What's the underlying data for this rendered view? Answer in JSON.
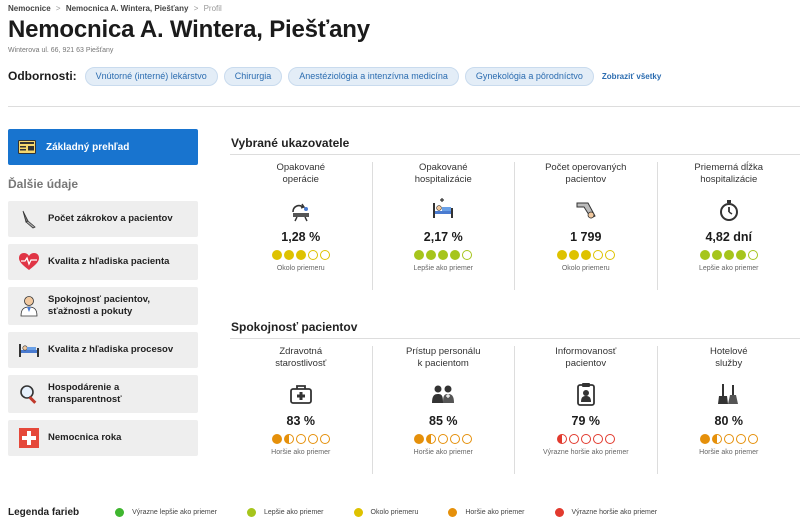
{
  "breadcrumb": {
    "items": [
      "Nemocnice",
      "Nemocnica A. Wintera, Piešťany",
      "Profil"
    ]
  },
  "header": {
    "title": "Nemocnica A. Wintera, Piešťany",
    "address": "Winterova ul. 66, 921 63 Piešťany"
  },
  "specialties": {
    "label": "Odbornosti:",
    "items": [
      "Vnútorné (interné) lekárstvo",
      "Chirurgia",
      "Anestéziológia a intenzívna medicína",
      "Gynekológia a pôrodníctvo"
    ],
    "show_all": "Zobraziť všetky"
  },
  "sidebar": {
    "active": "Základný prehľad",
    "section_title": "Ďalšie údaje",
    "items": [
      "Počet zákrokov a pacientov",
      "Kvalita z hľadiska pacienta",
      "Spokojnosť pacientov,\nsťažnosti a pokuty",
      "Kvalita z hľadiska procesov",
      "Hospodárenie a\ntransparentnosť",
      "Nemocnica roka"
    ]
  },
  "colors": {
    "green": "#3fb62f",
    "lightgreen": "#a6c51c",
    "yellow": "#dec200",
    "orange": "#e5900b",
    "red": "#e23a2e",
    "accent": "#1874cf"
  },
  "indicators": {
    "title": "Vybrané ukazovatele",
    "items": [
      {
        "title": "Opakované\noperácie",
        "icon": "surgery-repeat-icon",
        "value": "1,28 %",
        "rating": 3,
        "color": "yellow",
        "note": "Okolo priemeru"
      },
      {
        "title": "Opakované\nhospitalizácie",
        "icon": "hospital-bed-icon",
        "value": "2,17 %",
        "rating": 4,
        "color": "lightgreen",
        "note": "Lepšie ako priemer"
      },
      {
        "title": "Počet operovaných\npacientov",
        "icon": "operated-patients-icon",
        "value": "1 799",
        "rating": 3,
        "color": "yellow",
        "note": "Okolo priemeru"
      },
      {
        "title": "Priemerná dĺžka\nhospitalizácie",
        "icon": "stopwatch-icon",
        "value": "4,82 dní",
        "rating": 4,
        "color": "lightgreen",
        "note": "Lepšie ako priemer"
      }
    ]
  },
  "satisfaction": {
    "title": "Spokojnosť pacientov",
    "items": [
      {
        "title": "Zdravotná\nstarostlivosť",
        "icon": "first-aid-kit-icon",
        "value": "83 %",
        "rating": 1.5,
        "color": "orange",
        "note": "Horšie ako priemer"
      },
      {
        "title": "Prístup personálu\nk pacientom",
        "icon": "staff-icon",
        "value": "85 %",
        "rating": 1.5,
        "color": "orange",
        "note": "Horšie ako priemer"
      },
      {
        "title": "Informovanosť\npacientov",
        "icon": "clipboard-icon",
        "value": "79 %",
        "rating": 0.5,
        "color": "red",
        "note": "Výrazne horšie ako priemer"
      },
      {
        "title": "Hotelové\nslužby",
        "icon": "cleaning-icon",
        "value": "80 %",
        "rating": 1.5,
        "color": "orange",
        "note": "Horšie ako priemer"
      }
    ]
  },
  "legend": {
    "title": "Legenda farieb",
    "items": [
      {
        "label": "Výrazne lepšie ako priemer",
        "color": "green"
      },
      {
        "label": "Lepšie ako priemer",
        "color": "lightgreen"
      },
      {
        "label": "Okolo priemeru",
        "color": "yellow"
      },
      {
        "label": "Horšie ako priemer",
        "color": "orange"
      },
      {
        "label": "Výrazne horšie ako priemer",
        "color": "red"
      }
    ]
  }
}
